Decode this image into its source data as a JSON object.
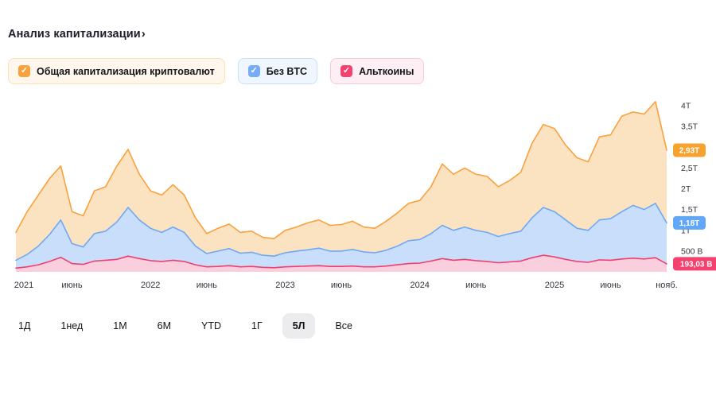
{
  "icons": {
    "check": "✓",
    "chevron_right": "›"
  },
  "header": {
    "title": "Анализ капитализации"
  },
  "legend": [
    {
      "label": "Общая капитализация криптовалют",
      "checked": true,
      "color": "#F9A13C",
      "bg": "#FFF7EB",
      "border": "#FBDFB4"
    },
    {
      "label": "Без BTC",
      "checked": true,
      "color": "#74ACF6",
      "bg": "#EFF6FE",
      "border": "#C9DFFB"
    },
    {
      "label": "Альткоины",
      "checked": true,
      "color": "#F5416E",
      "bg": "#FEEFF4",
      "border": "#FAC9D8"
    }
  ],
  "range_buttons": [
    {
      "label": "1Д",
      "selected": false
    },
    {
      "label": "1нед",
      "selected": false
    },
    {
      "label": "1М",
      "selected": false
    },
    {
      "label": "6М",
      "selected": false
    },
    {
      "label": "YTD",
      "selected": false
    },
    {
      "label": "1Г",
      "selected": false
    },
    {
      "label": "5Л",
      "selected": true
    },
    {
      "label": "Все",
      "selected": false
    }
  ],
  "chart_data": {
    "type": "area",
    "title": "Анализ капитализации",
    "x_unit": "месяц",
    "x_range": [
      "2021-01",
      "2025-11"
    ],
    "ylim": [
      0,
      4.25
    ],
    "grid": false,
    "legend_position": "top",
    "x_ticks": [
      {
        "label": "2021",
        "index": 0
      },
      {
        "label": "июнь",
        "index": 5
      },
      {
        "label": "2022",
        "index": 12
      },
      {
        "label": "июнь",
        "index": 17
      },
      {
        "label": "2023",
        "index": 24
      },
      {
        "label": "июнь",
        "index": 29
      },
      {
        "label": "2024",
        "index": 36
      },
      {
        "label": "июнь",
        "index": 41
      },
      {
        "label": "2025",
        "index": 48
      },
      {
        "label": "июнь",
        "index": 53
      },
      {
        "label": "нояб.",
        "index": 58
      }
    ],
    "y_ticks": [
      {
        "label": "4Т",
        "value": 4
      },
      {
        "label": "3,5Т",
        "value": 3.5
      },
      {
        "label": "3Т",
        "value": 3
      },
      {
        "label": "2,5Т",
        "value": 2.5
      },
      {
        "label": "2Т",
        "value": 2
      },
      {
        "label": "1,5Т",
        "value": 1.5
      },
      {
        "label": "1Т",
        "value": 1
      },
      {
        "label": "500 В",
        "value": 0.5
      }
    ],
    "series": [
      {
        "name": "Общая капитализация криптовалют",
        "line": "#F9A13C",
        "fill": "#FBE3C2",
        "badge": "#F7A22F",
        "last_label": "2,93Т",
        "values": [
          0.95,
          1.45,
          1.85,
          2.25,
          2.55,
          1.45,
          1.35,
          1.95,
          2.05,
          2.55,
          2.95,
          2.35,
          1.95,
          1.85,
          2.1,
          1.85,
          1.3,
          0.92,
          1.05,
          1.15,
          0.95,
          0.98,
          0.83,
          0.8,
          1.0,
          1.08,
          1.18,
          1.25,
          1.12,
          1.14,
          1.22,
          1.08,
          1.05,
          1.22,
          1.42,
          1.65,
          1.72,
          2.05,
          2.6,
          2.35,
          2.5,
          2.35,
          2.3,
          2.05,
          2.2,
          2.4,
          3.1,
          3.55,
          3.45,
          3.05,
          2.75,
          2.65,
          3.25,
          3.3,
          3.75,
          3.85,
          3.8,
          4.1,
          2.93
        ]
      },
      {
        "name": "Без BTC",
        "line": "#6FA8F5",
        "fill": "#C9DEFB",
        "badge": "#62A6F7",
        "last_label": "1,18Т",
        "values": [
          0.28,
          0.42,
          0.62,
          0.9,
          1.25,
          0.68,
          0.6,
          0.92,
          0.98,
          1.2,
          1.55,
          1.25,
          1.05,
          0.95,
          1.08,
          0.95,
          0.62,
          0.44,
          0.5,
          0.56,
          0.45,
          0.47,
          0.4,
          0.38,
          0.46,
          0.5,
          0.53,
          0.57,
          0.5,
          0.5,
          0.54,
          0.48,
          0.46,
          0.52,
          0.62,
          0.75,
          0.78,
          0.92,
          1.12,
          1.0,
          1.08,
          1.0,
          0.95,
          0.85,
          0.92,
          0.98,
          1.3,
          1.55,
          1.45,
          1.25,
          1.05,
          1.0,
          1.25,
          1.28,
          1.45,
          1.6,
          1.5,
          1.65,
          1.18
        ]
      },
      {
        "name": "Альткоины",
        "line": "#F23E6E",
        "fill": "#F9CFDD",
        "badge": "#F5416E",
        "last_label": "193,03 В",
        "values": [
          0.09,
          0.12,
          0.17,
          0.25,
          0.35,
          0.2,
          0.18,
          0.26,
          0.28,
          0.3,
          0.38,
          0.32,
          0.27,
          0.25,
          0.28,
          0.25,
          0.17,
          0.12,
          0.13,
          0.15,
          0.12,
          0.13,
          0.11,
          0.1,
          0.12,
          0.13,
          0.14,
          0.15,
          0.13,
          0.13,
          0.14,
          0.12,
          0.12,
          0.14,
          0.17,
          0.2,
          0.21,
          0.26,
          0.32,
          0.28,
          0.3,
          0.27,
          0.25,
          0.22,
          0.24,
          0.26,
          0.34,
          0.4,
          0.36,
          0.3,
          0.25,
          0.23,
          0.29,
          0.28,
          0.31,
          0.33,
          0.31,
          0.34,
          0.193
        ]
      }
    ]
  }
}
